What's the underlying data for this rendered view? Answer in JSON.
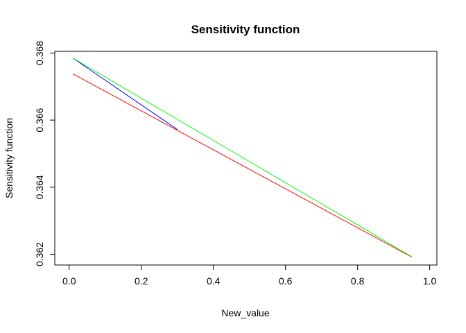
{
  "chart_data": {
    "type": "line",
    "title": "Sensitivity function",
    "xlabel": "New_value",
    "ylabel": "Sensitivity function",
    "xlim": [
      -0.04,
      1.02
    ],
    "ylim": [
      0.36168,
      0.36805
    ],
    "xticks": [
      0.0,
      0.2,
      0.4,
      0.6,
      0.8,
      1.0
    ],
    "xtick_labels": [
      "0.0",
      "0.2",
      "0.4",
      "0.6",
      "0.8",
      "1.0"
    ],
    "yticks": [
      0.362,
      0.364,
      0.366,
      0.368
    ],
    "ytick_labels": [
      "0.362",
      "0.364",
      "0.366",
      "0.368"
    ],
    "grid": false,
    "legend": "none",
    "series": [
      {
        "color": "#0000ff",
        "x": [
          0.01,
          0.3
        ],
        "y": [
          0.36785,
          0.36572
        ]
      },
      {
        "color": "#ff0000",
        "x": [
          0.01,
          0.95
        ],
        "y": [
          0.36738,
          0.36192
        ]
      },
      {
        "color": "#00ff00",
        "x": [
          0.01,
          0.95
        ],
        "y": [
          0.36785,
          0.36193
        ]
      }
    ]
  }
}
